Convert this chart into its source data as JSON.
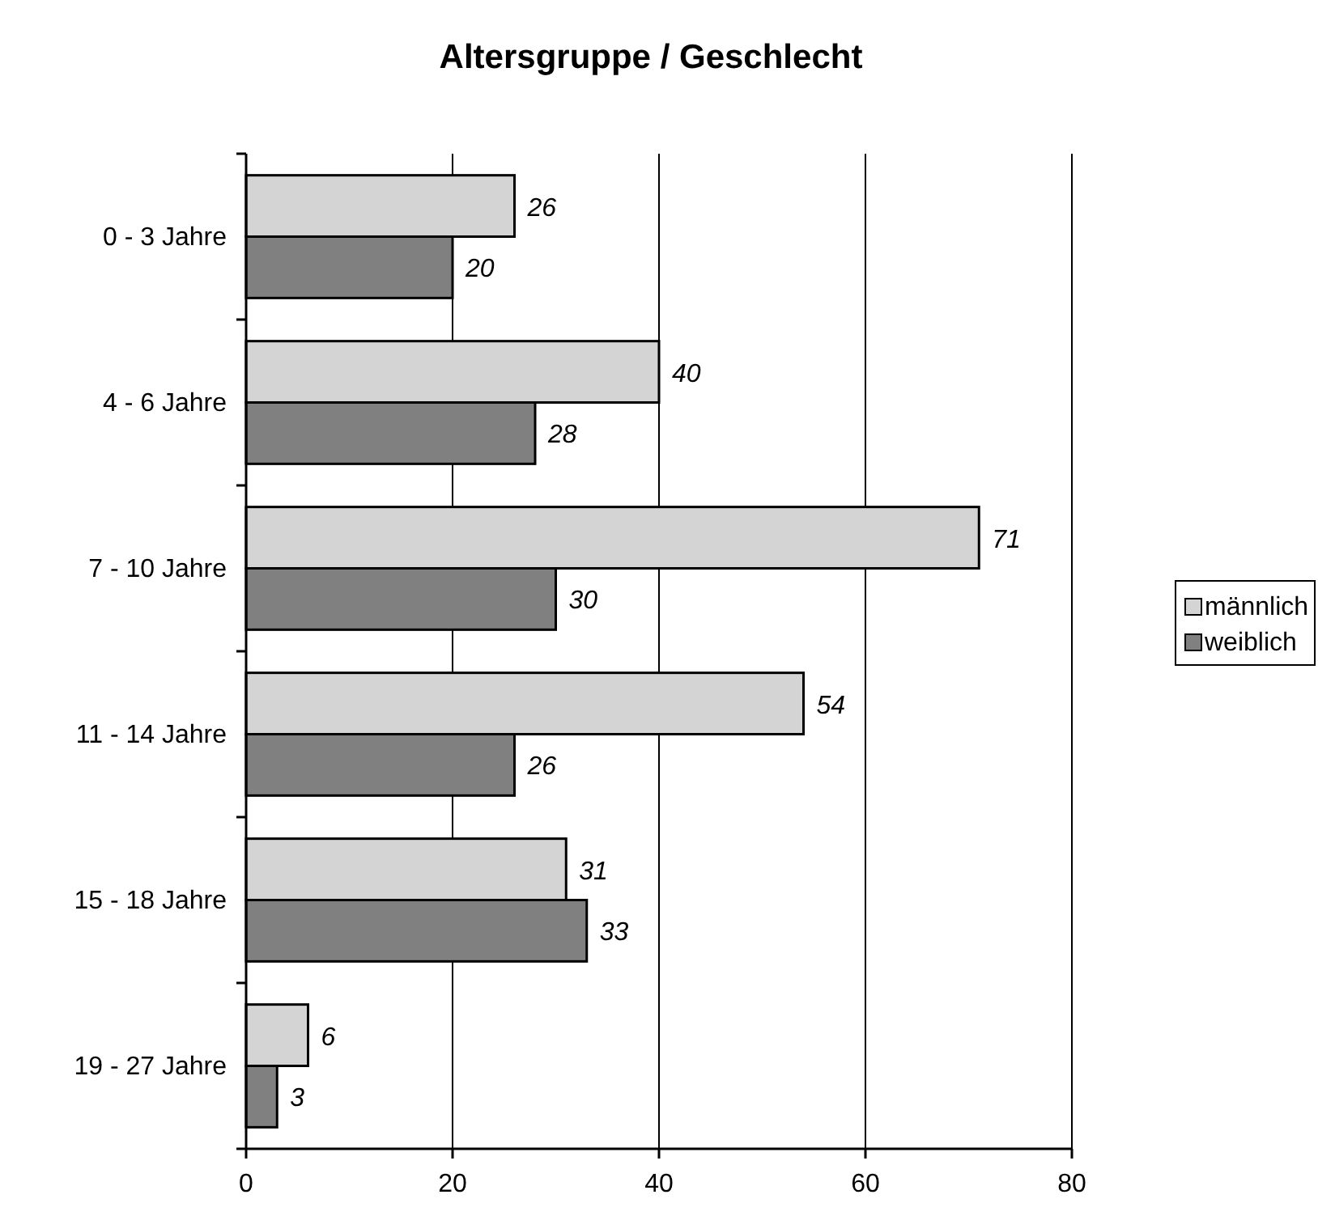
{
  "chart_data": {
    "type": "bar",
    "orientation": "horizontal",
    "title": "Altersgruppe / Geschlecht",
    "categories": [
      "0 - 3 Jahre",
      "4 - 6 Jahre",
      "7 - 10 Jahre",
      "11 - 14 Jahre",
      "15 - 18 Jahre",
      "19 - 27 Jahre"
    ],
    "series": [
      {
        "name": "männlich",
        "color": "#d4d4d4",
        "values": [
          26,
          40,
          71,
          54,
          31,
          6
        ]
      },
      {
        "name": "weiblich",
        "color": "#808080",
        "values": [
          20,
          28,
          30,
          26,
          33,
          3
        ]
      }
    ],
    "xlim": [
      0,
      80
    ],
    "xticks": [
      0,
      20,
      40,
      60,
      80
    ],
    "grid": "x",
    "legend": "right",
    "data_labels": true
  }
}
